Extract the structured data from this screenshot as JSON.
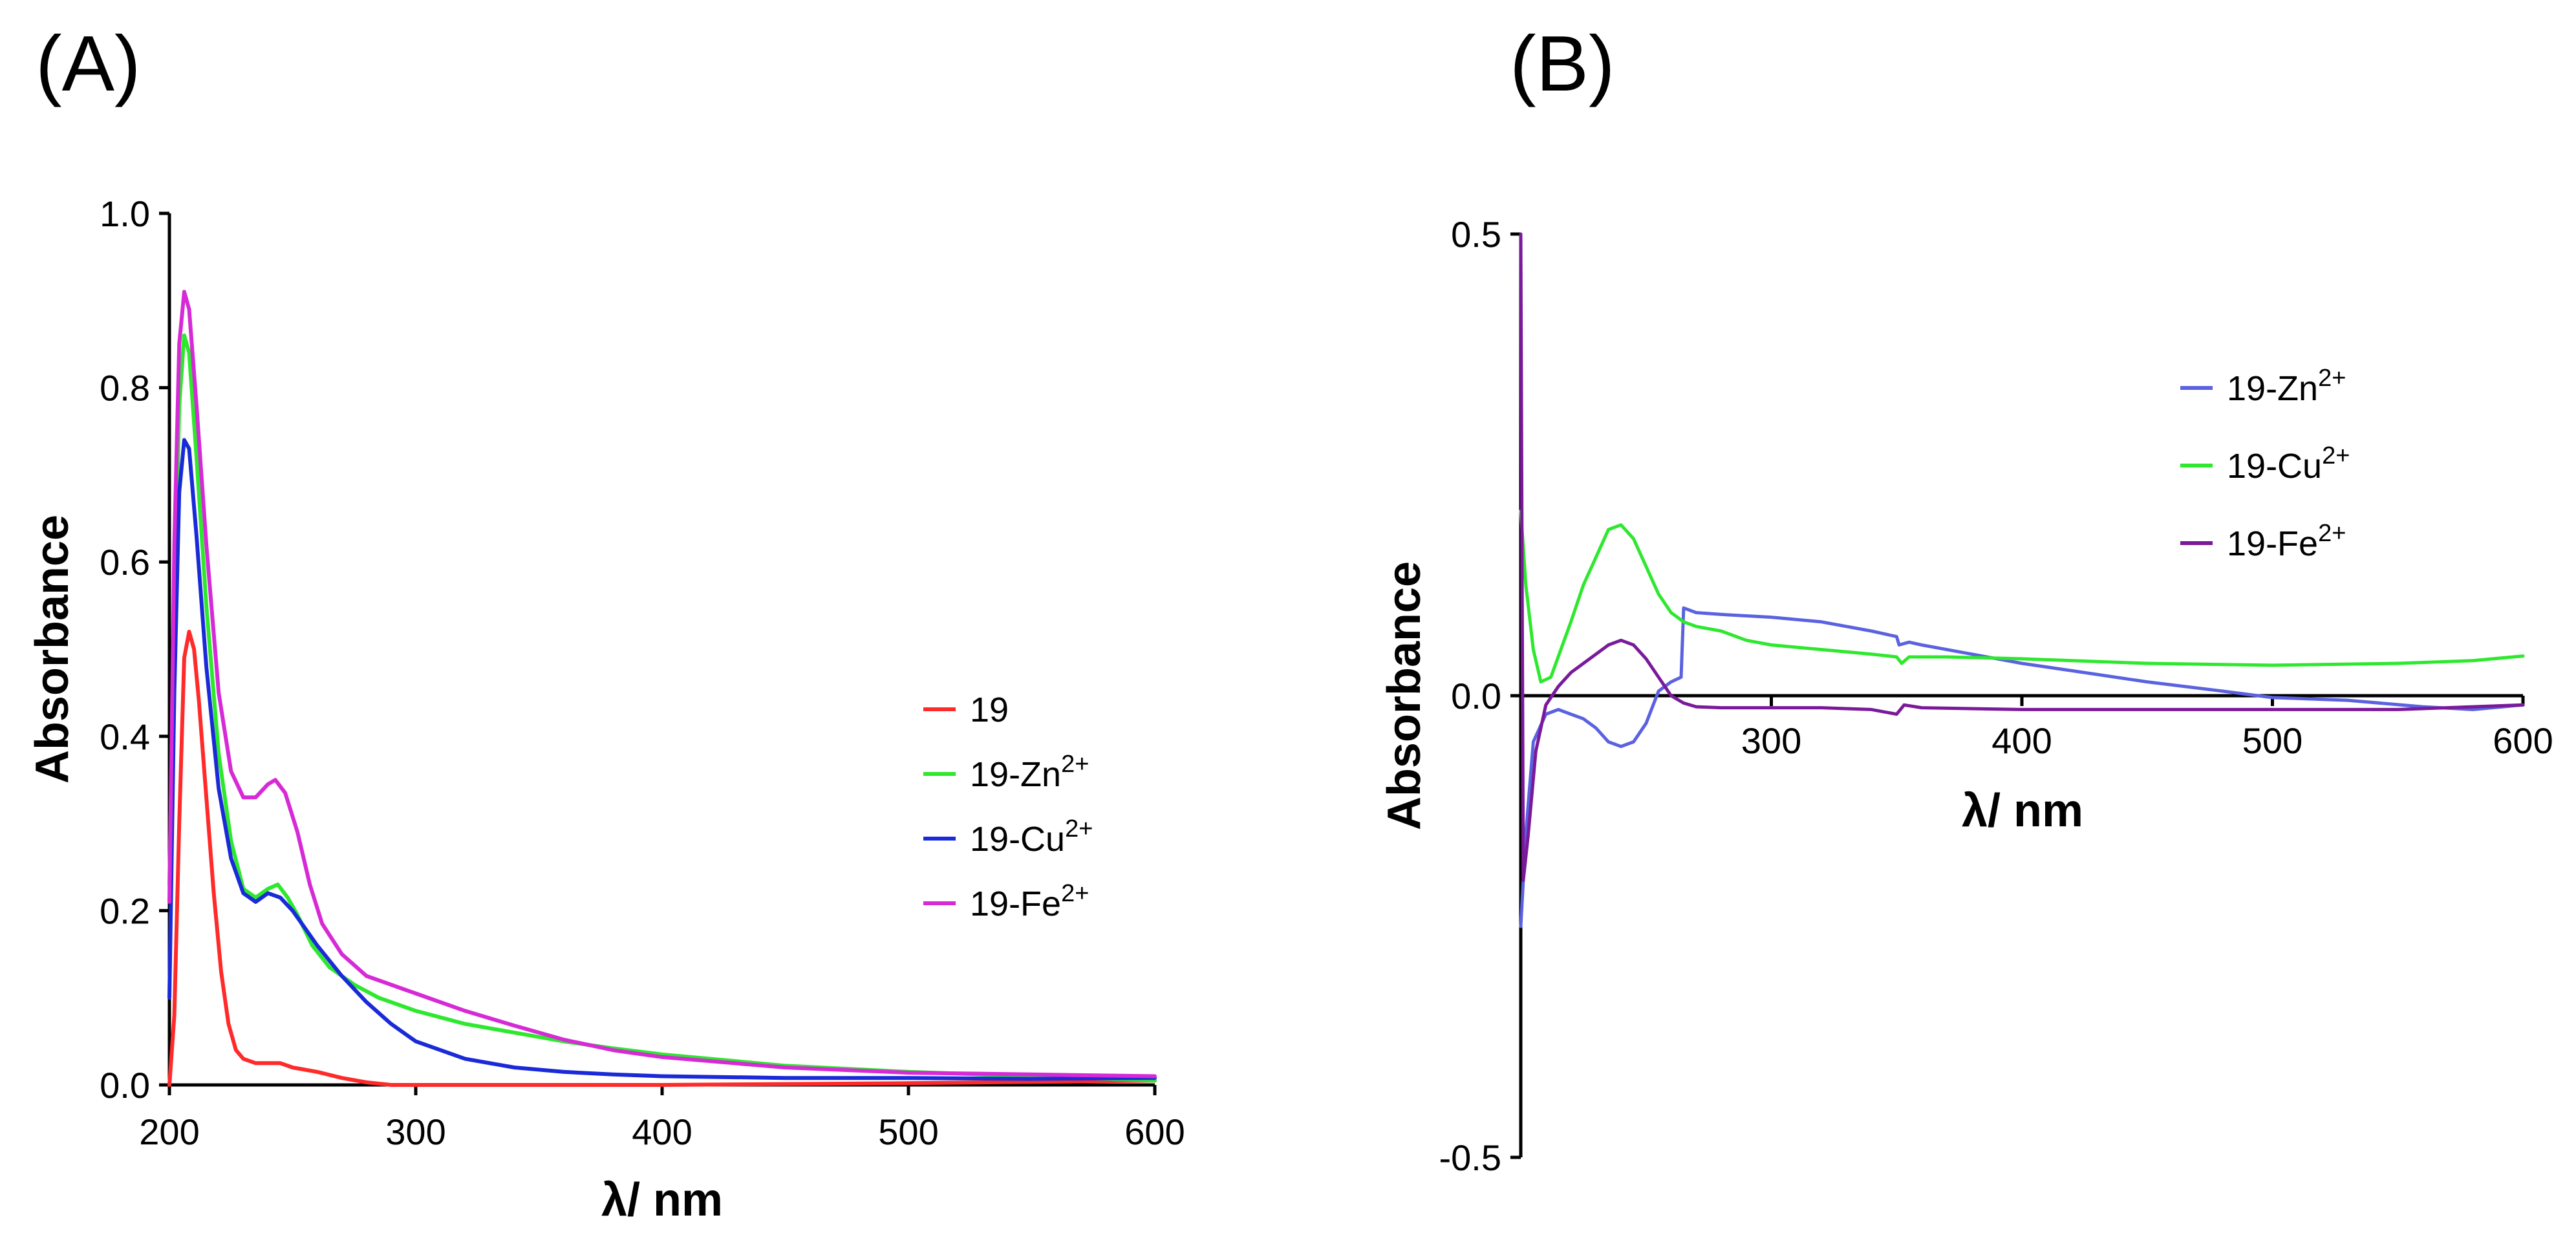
{
  "chart_data": [
    {
      "panel": "(A)",
      "type": "line",
      "xlabel": "λ/ nm",
      "ylabel": "Absorbance",
      "xlim": [
        200,
        600
      ],
      "ylim": [
        0,
        1.0
      ],
      "xticks": [
        "200",
        "300",
        "400",
        "500",
        "600"
      ],
      "yticks": [
        "0.0",
        "0.2",
        "0.4",
        "0.6",
        "0.8",
        "1.0"
      ],
      "legend_position": "right",
      "series": [
        {
          "name": "19",
          "label_base": "19",
          "label_sup": "",
          "color": "#ff2a2a",
          "points": [
            [
              200,
              0.0
            ],
            [
              202,
              0.08
            ],
            [
              204,
              0.3
            ],
            [
              206,
              0.49
            ],
            [
              208,
              0.52
            ],
            [
              210,
              0.5
            ],
            [
              212,
              0.44
            ],
            [
              215,
              0.33
            ],
            [
              218,
              0.22
            ],
            [
              221,
              0.13
            ],
            [
              224,
              0.07
            ],
            [
              227,
              0.04
            ],
            [
              230,
              0.03
            ],
            [
              235,
              0.025
            ],
            [
              240,
              0.025
            ],
            [
              245,
              0.025
            ],
            [
              250,
              0.02
            ],
            [
              260,
              0.015
            ],
            [
              270,
              0.008
            ],
            [
              280,
              0.003
            ],
            [
              290,
              0.0
            ],
            [
              300,
              0.0
            ],
            [
              400,
              0.0
            ],
            [
              500,
              0.002
            ],
            [
              600,
              0.005
            ]
          ]
        },
        {
          "name": "19-Zn2+",
          "label_base": "19-Zn",
          "label_sup": "2+",
          "color": "#2ee82e",
          "points": [
            [
              200,
              0.23
            ],
            [
              202,
              0.55
            ],
            [
              204,
              0.78
            ],
            [
              206,
              0.86
            ],
            [
              208,
              0.84
            ],
            [
              211,
              0.72
            ],
            [
              215,
              0.55
            ],
            [
              220,
              0.38
            ],
            [
              225,
              0.28
            ],
            [
              230,
              0.225
            ],
            [
              235,
              0.215
            ],
            [
              240,
              0.225
            ],
            [
              244,
              0.23
            ],
            [
              248,
              0.215
            ],
            [
              252,
              0.195
            ],
            [
              258,
              0.16
            ],
            [
              265,
              0.135
            ],
            [
              275,
              0.115
            ],
            [
              285,
              0.1
            ],
            [
              300,
              0.085
            ],
            [
              320,
              0.07
            ],
            [
              340,
              0.06
            ],
            [
              360,
              0.05
            ],
            [
              380,
              0.042
            ],
            [
              400,
              0.035
            ],
            [
              450,
              0.022
            ],
            [
              500,
              0.015
            ],
            [
              550,
              0.01
            ],
            [
              600,
              0.005
            ]
          ]
        },
        {
          "name": "19-Cu2+",
          "label_base": "19-Cu",
          "label_sup": "2+",
          "color": "#1a2ad8",
          "points": [
            [
              200,
              0.1
            ],
            [
              202,
              0.45
            ],
            [
              204,
              0.68
            ],
            [
              206,
              0.74
            ],
            [
              208,
              0.73
            ],
            [
              211,
              0.63
            ],
            [
              215,
              0.48
            ],
            [
              220,
              0.34
            ],
            [
              225,
              0.26
            ],
            [
              230,
              0.22
            ],
            [
              235,
              0.21
            ],
            [
              240,
              0.22
            ],
            [
              245,
              0.215
            ],
            [
              250,
              0.2
            ],
            [
              255,
              0.18
            ],
            [
              260,
              0.16
            ],
            [
              270,
              0.125
            ],
            [
              280,
              0.095
            ],
            [
              290,
              0.07
            ],
            [
              300,
              0.05
            ],
            [
              320,
              0.03
            ],
            [
              340,
              0.02
            ],
            [
              360,
              0.015
            ],
            [
              380,
              0.012
            ],
            [
              400,
              0.01
            ],
            [
              450,
              0.008
            ],
            [
              500,
              0.008
            ],
            [
              550,
              0.007
            ],
            [
              600,
              0.008
            ]
          ]
        },
        {
          "name": "19-Fe2+",
          "label_base": "19-Fe",
          "label_sup": "2+",
          "color": "#d62ad6",
          "points": [
            [
              200,
              0.21
            ],
            [
              202,
              0.62
            ],
            [
              204,
              0.85
            ],
            [
              206,
              0.91
            ],
            [
              208,
              0.89
            ],
            [
              211,
              0.78
            ],
            [
              215,
              0.62
            ],
            [
              220,
              0.45
            ],
            [
              225,
              0.36
            ],
            [
              230,
              0.33
            ],
            [
              235,
              0.33
            ],
            [
              240,
              0.345
            ],
            [
              243,
              0.35
            ],
            [
              247,
              0.335
            ],
            [
              252,
              0.29
            ],
            [
              257,
              0.23
            ],
            [
              262,
              0.185
            ],
            [
              270,
              0.15
            ],
            [
              280,
              0.125
            ],
            [
              290,
              0.115
            ],
            [
              300,
              0.105
            ],
            [
              320,
              0.085
            ],
            [
              340,
              0.068
            ],
            [
              360,
              0.052
            ],
            [
              380,
              0.04
            ],
            [
              400,
              0.032
            ],
            [
              450,
              0.02
            ],
            [
              500,
              0.014
            ],
            [
              550,
              0.012
            ],
            [
              600,
              0.01
            ]
          ]
        }
      ]
    },
    {
      "panel": "(B)",
      "type": "line",
      "xlabel": "λ/ nm",
      "ylabel": "Absorbance",
      "xlim": [
        200,
        600
      ],
      "ylim": [
        -0.5,
        0.5
      ],
      "xticks": [
        "300",
        "400",
        "500",
        "600"
      ],
      "yticks": [
        "-0.5",
        "0.0",
        "0.5"
      ],
      "legend_position": "right",
      "series": [
        {
          "name": "19-Zn2+",
          "label_base": "19-Zn",
          "label_sup": "2+",
          "color": "#5a62e0",
          "points": [
            [
              200,
              -0.25
            ],
            [
              202,
              -0.15
            ],
            [
              205,
              -0.05
            ],
            [
              210,
              -0.02
            ],
            [
              215,
              -0.015
            ],
            [
              220,
              -0.02
            ],
            [
              225,
              -0.025
            ],
            [
              230,
              -0.035
            ],
            [
              235,
              -0.05
            ],
            [
              240,
              -0.055
            ],
            [
              245,
              -0.05
            ],
            [
              250,
              -0.03
            ],
            [
              255,
              0.005
            ],
            [
              260,
              0.015
            ],
            [
              264,
              0.02
            ],
            [
              265,
              0.095
            ],
            [
              270,
              0.09
            ],
            [
              280,
              0.088
            ],
            [
              300,
              0.085
            ],
            [
              320,
              0.08
            ],
            [
              340,
              0.07
            ],
            [
              350,
              0.064
            ],
            [
              351,
              0.055
            ],
            [
              355,
              0.058
            ],
            [
              360,
              0.055
            ],
            [
              380,
              0.045
            ],
            [
              400,
              0.035
            ],
            [
              420,
              0.027
            ],
            [
              450,
              0.015
            ],
            [
              480,
              0.005
            ],
            [
              500,
              -0.002
            ],
            [
              530,
              -0.005
            ],
            [
              560,
              -0.012
            ],
            [
              580,
              -0.015
            ],
            [
              600,
              -0.01
            ]
          ]
        },
        {
          "name": "19-Cu2+",
          "label_base": "19-Cu",
          "label_sup": "2+",
          "color": "#2ee82e",
          "points": [
            [
              200,
              0.2
            ],
            [
              202,
              0.12
            ],
            [
              205,
              0.05
            ],
            [
              208,
              0.015
            ],
            [
              212,
              0.02
            ],
            [
              216,
              0.05
            ],
            [
              220,
              0.08
            ],
            [
              225,
              0.12
            ],
            [
              230,
              0.15
            ],
            [
              235,
              0.18
            ],
            [
              240,
              0.185
            ],
            [
              245,
              0.17
            ],
            [
              250,
              0.14
            ],
            [
              255,
              0.11
            ],
            [
              260,
              0.09
            ],
            [
              265,
              0.08
            ],
            [
              270,
              0.075
            ],
            [
              280,
              0.07
            ],
            [
              290,
              0.06
            ],
            [
              300,
              0.055
            ],
            [
              320,
              0.05
            ],
            [
              340,
              0.045
            ],
            [
              350,
              0.042
            ],
            [
              352,
              0.035
            ],
            [
              355,
              0.042
            ],
            [
              370,
              0.042
            ],
            [
              400,
              0.04
            ],
            [
              450,
              0.035
            ],
            [
              500,
              0.033
            ],
            [
              550,
              0.035
            ],
            [
              580,
              0.038
            ],
            [
              600,
              0.043
            ]
          ]
        },
        {
          "name": "19-Fe2+",
          "label_base": "19-Fe",
          "label_sup": "2+",
          "color": "#7a1a9a",
          "points": [
            [
              200,
              0.5
            ],
            [
              201,
              -0.2
            ],
            [
              203,
              -0.15
            ],
            [
              206,
              -0.06
            ],
            [
              210,
              -0.01
            ],
            [
              215,
              0.01
            ],
            [
              220,
              0.025
            ],
            [
              225,
              0.035
            ],
            [
              230,
              0.045
            ],
            [
              235,
              0.055
            ],
            [
              240,
              0.06
            ],
            [
              245,
              0.055
            ],
            [
              250,
              0.04
            ],
            [
              255,
              0.02
            ],
            [
              260,
              0.0
            ],
            [
              265,
              -0.008
            ],
            [
              270,
              -0.012
            ],
            [
              280,
              -0.013
            ],
            [
              300,
              -0.013
            ],
            [
              320,
              -0.013
            ],
            [
              340,
              -0.015
            ],
            [
              350,
              -0.02
            ],
            [
              353,
              -0.01
            ],
            [
              360,
              -0.013
            ],
            [
              400,
              -0.015
            ],
            [
              450,
              -0.015
            ],
            [
              500,
              -0.015
            ],
            [
              550,
              -0.015
            ],
            [
              580,
              -0.012
            ],
            [
              600,
              -0.01
            ]
          ]
        }
      ]
    }
  ]
}
